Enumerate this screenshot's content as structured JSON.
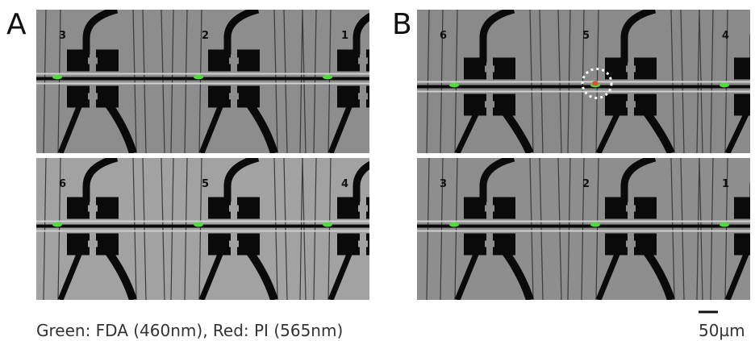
{
  "panels": [
    {
      "label": "A",
      "images": [
        {
          "site_labels": [
            "3",
            "2",
            "1"
          ]
        },
        {
          "site_labels": [
            "6",
            "5",
            "4"
          ]
        }
      ]
    },
    {
      "label": "B",
      "images": [
        {
          "site_labels": [
            "6",
            "5",
            "4"
          ]
        },
        {
          "site_labels": [
            "3",
            "2",
            "1"
          ]
        }
      ]
    }
  ],
  "caption": "Green: FDA (460nm), Red: PI (565nm)",
  "scale_bar": {
    "label": "50µm"
  }
}
